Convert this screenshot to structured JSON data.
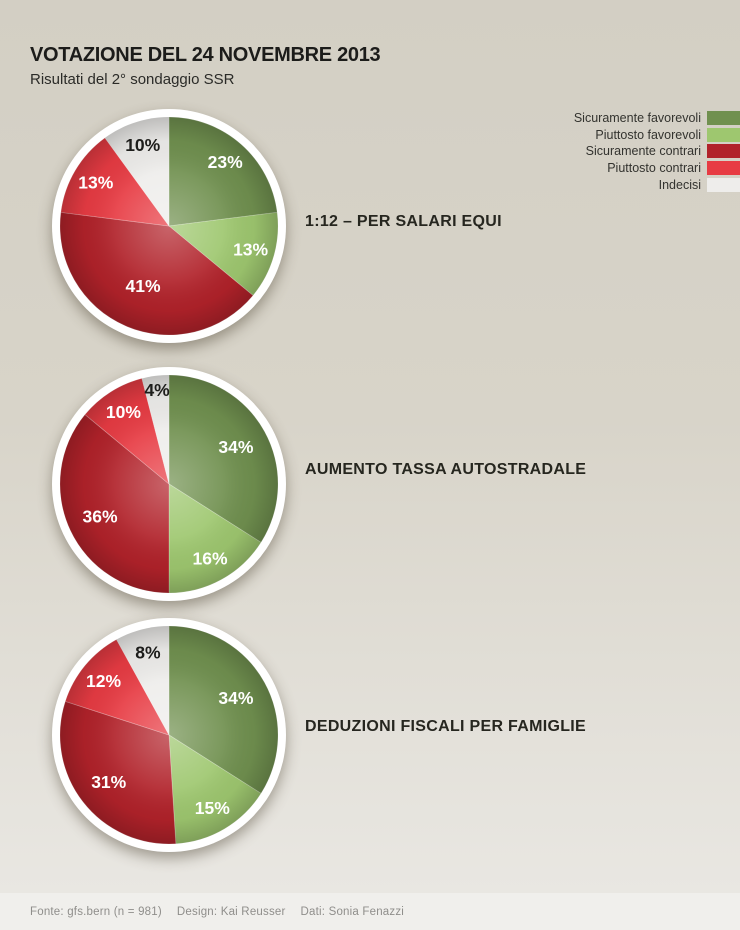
{
  "header": {
    "title": "VOTAZIONE DEL 24 NOVEMBRE 2013",
    "subtitle": "Risultati del 2° sondaggio SSR"
  },
  "chart_data": {
    "type": "pie",
    "legend_position": "top-right",
    "categories": [
      "Sicuramente favorevoli",
      "Piuttosto favorevoli",
      "Sicuramente contrari",
      "Piuttosto contrari",
      "Indecisi"
    ],
    "colors": [
      "#70904f",
      "#9ec76f",
      "#b1222a",
      "#e73b43",
      "#eeedeb"
    ],
    "label_colors": [
      "#ffffff",
      "#ffffff",
      "#ffffff",
      "#ffffff",
      "#1d1d1b"
    ],
    "value_suffix": "%",
    "pies": [
      {
        "title": "1:12 – PER SALARI EQUI",
        "values": [
          23,
          13,
          41,
          13,
          10
        ]
      },
      {
        "title": "AUMENTO TASSA AUTOSTRADALE",
        "values": [
          34,
          16,
          36,
          10,
          4
        ]
      },
      {
        "title": "DEDUZIONI FISCALI PER FAMIGLIE",
        "values": [
          34,
          15,
          31,
          12,
          8
        ]
      }
    ]
  },
  "footer": {
    "source": "Fonte: gfs.bern (n = 981)",
    "design": "Design: Kai Reusser",
    "data": "Dati: Sonia Fenazzi"
  },
  "page_colors": {
    "background_top": "#d3cfc4",
    "background_bottom": "#e9e7e2",
    "footer_band": "#f0efec"
  }
}
